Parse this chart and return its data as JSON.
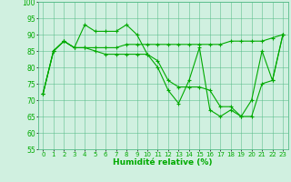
{
  "line1_y": [
    72,
    85,
    88,
    86,
    86,
    86,
    86,
    86,
    87,
    87,
    87,
    87,
    87,
    87,
    87,
    87,
    87,
    87,
    88,
    88,
    88,
    88,
    89,
    90
  ],
  "line2_y": [
    72,
    85,
    88,
    86,
    93,
    91,
    91,
    91,
    93,
    90,
    84,
    80,
    73,
    69,
    76,
    86,
    67,
    65,
    67,
    65,
    70,
    85,
    76,
    90
  ],
  "line3_y": [
    72,
    85,
    88,
    86,
    86,
    85,
    84,
    84,
    84,
    84,
    84,
    82,
    76,
    74,
    74,
    74,
    73,
    68,
    68,
    65,
    65,
    75,
    76,
    90
  ],
  "x": [
    0,
    1,
    2,
    3,
    4,
    5,
    6,
    7,
    8,
    9,
    10,
    11,
    12,
    13,
    14,
    15,
    16,
    17,
    18,
    19,
    20,
    21,
    22,
    23
  ],
  "background_color": "#d0f0e0",
  "grid_color": "#55bb88",
  "line_color": "#00aa00",
  "xlabel": "Humidité relative (%)",
  "xlabel_fontsize": 6.5,
  "ylim": [
    55,
    100
  ],
  "xlim": [
    -0.5,
    23.5
  ],
  "yticks": [
    55,
    60,
    65,
    70,
    75,
    80,
    85,
    90,
    95,
    100
  ],
  "xticks": [
    0,
    1,
    2,
    3,
    4,
    5,
    6,
    7,
    8,
    9,
    10,
    11,
    12,
    13,
    14,
    15,
    16,
    17,
    18,
    19,
    20,
    21,
    22,
    23
  ],
  "tick_fontsize": 5,
  "marker_size": 2.5,
  "line_width": 0.8
}
